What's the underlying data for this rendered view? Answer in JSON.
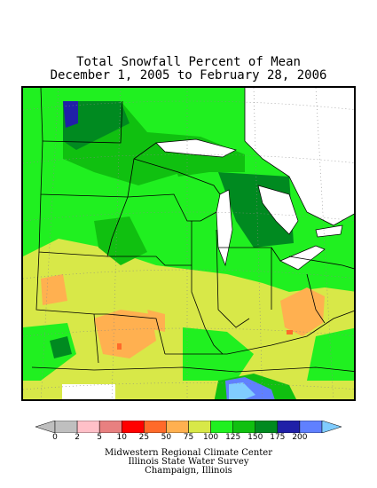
{
  "title": {
    "line1": "Total Snowfall Percent of Mean",
    "line2": "December 1, 2005 to February 28, 2006"
  },
  "legend": {
    "items": [
      {
        "label": "0",
        "color": "#bfbfbf"
      },
      {
        "label": "2",
        "color": "#ffc0c8"
      },
      {
        "label": "5",
        "color": "#e88080"
      },
      {
        "label": "10",
        "color": "#ff0000"
      },
      {
        "label": "25",
        "color": "#ff6a2a"
      },
      {
        "label": "50",
        "color": "#ffb050"
      },
      {
        "label": "75",
        "color": "#d8e848"
      },
      {
        "label": "100",
        "color": "#20f020"
      },
      {
        "label": "125",
        "color": "#10c010"
      },
      {
        "label": "150",
        "color": "#008a20"
      },
      {
        "label": "175",
        "color": "#2020a8"
      },
      {
        "label": "200",
        "color": "#6080ff"
      }
    ],
    "overflow_color": "#80ccff",
    "underflow_color": "#bfbfbf"
  },
  "credits": {
    "line1": "Midwestern Regional Climate Center",
    "line2": "Illinois State Water Survey",
    "line3": "Champaign, Illinois"
  }
}
